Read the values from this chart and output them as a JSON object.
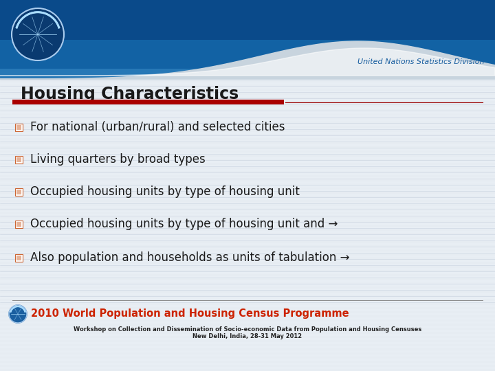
{
  "title": "Housing Characteristics",
  "title_color": "#1a1a1a",
  "title_fontsize": 17,
  "bullet_items": [
    "For national (urban/rural) and selected cities",
    "Living quarters by broad types",
    "Occupied housing units by type of housing unit",
    "Occupied housing units by type of housing unit and →",
    "Also population and households as units of tabulation →"
  ],
  "bullet_text_color": "#1a1a1a",
  "bullet_fontsize": 12,
  "bullet_box_color": "#cc6633",
  "un_text": "United Nations Statistics Division",
  "un_text_color": "#1a5fa0",
  "red_bar_color": "#aa0000",
  "thin_line_color": "#990000",
  "footer_line_color": "#888888",
  "footer_program_text": "2010 World Population and Housing Census Programme",
  "footer_program_color": "#cc2200",
  "footer_workshop_line1": "Workshop on Collection and Dissemination of Socio-economic Data from Population and Housing Censuses",
  "footer_workshop_line2": "New Delhi, India, 28-31 May 2012",
  "footer_text_color": "#222222",
  "slide_bg_color": "#e8eef4",
  "content_bg_color": "#edf1f5",
  "header_dark_blue": "#0a4a8a",
  "header_mid_blue": "#1a7abf",
  "header_light_blue": "#5aabe0",
  "wave_gray": "#c8d4de",
  "stripe_color": "#d8e0e8",
  "stripe_alpha": 0.5
}
